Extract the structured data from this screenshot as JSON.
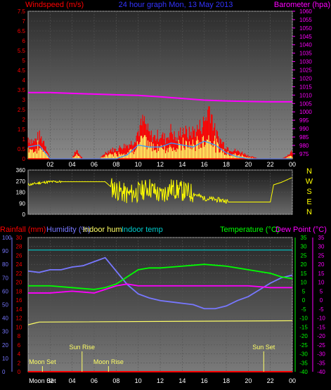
{
  "header": {
    "left_label": "Windspeed (m/s)",
    "center_label": "24 hour graph Mon, 13 May 2013",
    "right_label": "Barometer (hpa)"
  },
  "colors": {
    "windspeed": "#ff0000",
    "gust": "#ff0000",
    "avg_wind": "#3399ff",
    "wind_light": "#ffff66",
    "barometer": "#ff00ff",
    "direction": "#ffff00",
    "rain": "#ff0000",
    "humidity": "#7777ff",
    "indoor_hum": "#ffff66",
    "indoor_temp": "#00cccc",
    "temperature": "#00ff00",
    "dew_point": "#ff00ff",
    "axis_left": "#ff0000",
    "axis_right": "#ff00ff",
    "axis_temp": "#00ff00",
    "axis_hum": "#7777ff",
    "astro": "#ffff66"
  },
  "direction_labels": [
    "N",
    "W",
    "S",
    "E",
    "N"
  ],
  "bottom_legend": {
    "rainfall": "Rainfall (mm)",
    "humidity": "Humidity (%)",
    "indoor_hum": "Indoor hum",
    "indoor_temp": "Indoor temp",
    "temperature": "Temperature (°C)",
    "dew_point": "Dew Point (°C)"
  },
  "astro_events": [
    {
      "label": "Moon Set",
      "hour": 1.3,
      "row": "low"
    },
    {
      "label": "Sun Rise",
      "hour": 4.9,
      "row": "high"
    },
    {
      "label": "Moon Rise",
      "hour": 7.3,
      "row": "low"
    },
    {
      "label": "Sun Set",
      "hour": 21.4,
      "row": "high"
    }
  ],
  "bottom_time_labels": [
    "Moon Set",
    "02",
    "04",
    "06",
    "08",
    "10",
    "12",
    "14",
    "16",
    "18",
    "20",
    "22",
    "00"
  ],
  "chart_data": [
    {
      "type": "line",
      "name": "wind_barometer",
      "x_ticks": [
        "02",
        "04",
        "06",
        "08",
        "10",
        "12",
        "14",
        "16",
        "18",
        "20",
        "22",
        "00"
      ],
      "x_range_hours": [
        0,
        24
      ],
      "ylim_left": [
        0,
        7.5
      ],
      "yticks_left": [
        "0",
        "0.5",
        "1",
        "1.5",
        "2",
        "2.5",
        "3",
        "3.5",
        "4",
        "4.5",
        "5",
        "5.5",
        "6",
        "6.5",
        "7",
        "7.5"
      ],
      "ylim_right": [
        972,
        1060
      ],
      "yticks_right": [
        "975",
        "980",
        "985",
        "990",
        "995",
        "1000",
        "1005",
        "1010",
        "1015",
        "1020",
        "1025",
        "1030",
        "1035",
        "1040",
        "1045",
        "1050",
        "1055",
        "1060"
      ],
      "barometer": {
        "x": [
          0,
          2,
          4,
          6,
          8,
          10,
          12,
          14,
          16,
          18,
          20,
          22,
          24
        ],
        "y": [
          1011.5,
          1011.5,
          1011.0,
          1010.6,
          1010.2,
          1009.8,
          1009.0,
          1008.0,
          1007.0,
          1006.5,
          1006.2,
          1006.0,
          1006.0
        ]
      },
      "wind_gust_envelope": {
        "x": [
          0,
          0.5,
          1,
          1.5,
          2,
          3,
          4,
          4.3,
          5,
          6,
          6.5,
          7,
          7.5,
          8,
          8.5,
          9,
          9.5,
          10,
          10.5,
          11,
          11.5,
          12,
          12.5,
          13,
          13.5,
          14,
          14.5,
          15,
          15.5,
          16,
          16.5,
          17,
          17.5,
          18,
          18.5,
          19,
          19.5,
          20,
          21,
          22,
          23,
          23.5,
          24
        ],
        "y": [
          1.4,
          1.1,
          1.5,
          1.1,
          0.0,
          0.0,
          0.0,
          0.6,
          0.0,
          0.0,
          0.0,
          0.4,
          0.6,
          0.6,
          0.8,
          0.9,
          1.1,
          1.8,
          2.5,
          1.6,
          1.4,
          1.6,
          1.3,
          1.9,
          1.2,
          2.0,
          1.6,
          1.8,
          2.0,
          2.4,
          3.5,
          1.7,
          1.2,
          0.8,
          0.6,
          0.5,
          0.4,
          0.2,
          0.0,
          0.0,
          0.0,
          0.2,
          0.5
        ]
      },
      "wind_avg": {
        "x": [
          0,
          1,
          2,
          4,
          8,
          9,
          10,
          11,
          12,
          13,
          14,
          15,
          16,
          17,
          18,
          19,
          20,
          24
        ],
        "y": [
          0.6,
          0.7,
          0.0,
          0.0,
          0.0,
          0.2,
          0.7,
          0.6,
          0.6,
          0.8,
          0.7,
          0.6,
          0.9,
          0.7,
          0.3,
          0.1,
          0.0,
          0.0
        ]
      }
    },
    {
      "type": "line",
      "name": "wind_direction",
      "ylim": [
        0,
        360
      ],
      "yticks": [
        "0",
        "90",
        "180",
        "270",
        "360"
      ],
      "x": [
        0,
        1,
        2,
        3,
        5,
        7,
        7.5,
        8,
        9,
        10,
        11,
        12,
        13,
        14,
        15,
        16,
        17,
        18,
        18.2,
        20,
        22,
        22.3,
        23,
        24
      ],
      "y": [
        240,
        255,
        265,
        265,
        265,
        265,
        225,
        200,
        160,
        180,
        220,
        150,
        210,
        190,
        170,
        130,
        120,
        110,
        100,
        100,
        100,
        240,
        260,
        300
      ]
    },
    {
      "type": "line",
      "name": "temp_humidity",
      "ylim_humidity": [
        0,
        100
      ],
      "yticks_humidity": [
        "0",
        "5",
        "10",
        "15",
        "20",
        "25",
        "30",
        "35",
        "40",
        "45",
        "50",
        "55",
        "60",
        "65",
        "70",
        "75",
        "80",
        "85",
        "90",
        "95",
        "100"
      ],
      "ylim_rain": [
        0,
        30
      ],
      "yticks_rain": [
        "0",
        "2",
        "4",
        "6",
        "8",
        "10",
        "12",
        "14",
        "16",
        "18",
        "20",
        "22",
        "24",
        "26",
        "28",
        "30"
      ],
      "ylim_temp": [
        -40,
        35
      ],
      "yticks_temp": [
        "35",
        "30",
        "25",
        "20",
        "15",
        "10",
        "5",
        "0",
        "-5",
        "-10",
        "-15",
        "-20",
        "-25",
        "-30",
        "-35",
        "-40"
      ],
      "humidity": {
        "x": [
          0,
          1,
          2,
          3,
          4,
          5,
          6,
          7,
          8,
          9,
          10,
          11,
          12,
          13,
          14,
          15,
          16,
          17,
          18,
          19,
          20,
          21,
          22,
          23,
          24
        ],
        "y": [
          75,
          74,
          76,
          76,
          78,
          79,
          82,
          85,
          75,
          65,
          58,
          55,
          53,
          52,
          51,
          50,
          47,
          47,
          49,
          53,
          56,
          61,
          66,
          70,
          72
        ]
      },
      "indoor_temp": {
        "x": [
          0,
          24
        ],
        "y": [
          28,
          28
        ]
      },
      "indoor_hum": {
        "x": [
          0,
          0.5,
          1,
          24
        ],
        "y": [
          35,
          36,
          37,
          38
        ]
      },
      "temperature": {
        "x": [
          0,
          2,
          4,
          6,
          7,
          8,
          9,
          10,
          11,
          12,
          14,
          16,
          18,
          20,
          22,
          23,
          24
        ],
        "y": [
          8,
          8,
          7,
          6,
          7,
          9,
          13,
          17,
          18,
          18,
          19,
          20,
          19,
          17,
          15,
          13,
          12
        ]
      },
      "dew_point": {
        "x": [
          0,
          2,
          4,
          6,
          7,
          8,
          9,
          10,
          11,
          12,
          14,
          16,
          18,
          20,
          22,
          24
        ],
        "y": [
          4,
          4,
          5,
          4,
          6,
          8,
          9,
          8,
          8,
          8,
          8,
          8,
          8,
          8,
          7,
          7
        ]
      },
      "rainfall": {
        "x": [
          0,
          24
        ],
        "y": [
          0,
          0
        ]
      }
    }
  ]
}
